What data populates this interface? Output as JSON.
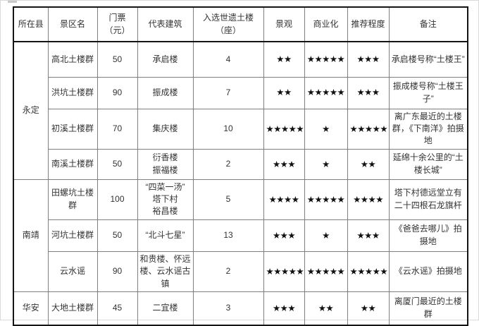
{
  "page": {
    "background": "#ffffff",
    "frame_border_color": "#d9d9d9"
  },
  "colors": {
    "outer_border": "#141414",
    "grid_line": "#7f7f7f",
    "text": "#333333",
    "star": "#111111"
  },
  "star_char": "★",
  "table": {
    "headers": [
      "所在县",
      "景区名",
      "门票\n（元）",
      "代表建筑",
      "入选世遗土楼（座）",
      "景观",
      "商业化",
      "推荐程度",
      "备注"
    ],
    "header_keys": [
      "county",
      "scenic-name",
      "ticket",
      "building",
      "heritage-count",
      "scenery",
      "commercial",
      "recommend",
      "remark"
    ],
    "groups": [
      {
        "county": "永定",
        "rows": [
          {
            "scenic": "高北土楼群",
            "ticket": "50",
            "building": "承启楼",
            "heritage": "4",
            "scenery": 2,
            "commercial": 5,
            "recommend": 3,
            "remark": "承启楼号称“土楼王”"
          },
          {
            "scenic": "洪坑土楼群",
            "ticket": "90",
            "building": "振成楼",
            "heritage": "7",
            "scenery": 2,
            "commercial": 5,
            "recommend": 3,
            "remark": "振成楼号称“土楼王子”"
          },
          {
            "scenic": "初溪土楼群",
            "ticket": "70",
            "building": "集庆楼",
            "heritage": "10",
            "scenery": 5,
            "commercial": 1,
            "recommend": 5,
            "remark": "离广东最近的土楼群，《下南洋》拍摄地"
          },
          {
            "scenic": "南溪土楼群",
            "ticket": "50",
            "building": "衍香楼\n振福楼",
            "heritage": "2",
            "scenery": 3,
            "commercial": 1,
            "recommend": 2,
            "remark": "延绵十余公里的“土楼长城”"
          }
        ]
      },
      {
        "county": "南靖",
        "rows": [
          {
            "scenic": "田螺坑土楼群",
            "ticket": "100",
            "building": "“四菜一汤”\n塔下村\n裕昌楼",
            "heritage": "5",
            "scenery": 4,
            "commercial": 5,
            "recommend": 4,
            "remark": "塔下村德远堂立有二十四根石龙旗杆"
          },
          {
            "scenic": "河坑土楼群",
            "ticket": "50",
            "building": "“北斗七星”",
            "heritage": "13",
            "scenery": 3,
            "commercial": 1,
            "recommend": 3,
            "remark": "《爸爸去哪儿》拍摄地"
          },
          {
            "scenic": "云水谣",
            "ticket": "90",
            "building": "和贵楼、怀远楼、云水谣古镇",
            "heritage": "2",
            "scenery": 5,
            "commercial": 5,
            "recommend": 5,
            "remark": "《云水谣》拍摄地"
          }
        ]
      },
      {
        "county": "华安",
        "rows": [
          {
            "scenic": "大地土楼群",
            "ticket": "45",
            "building": "二宜楼",
            "heritage": "3",
            "scenery": 3,
            "commercial": 2,
            "recommend": 2,
            "remark": "离厦门最近的土楼群"
          }
        ]
      }
    ]
  }
}
